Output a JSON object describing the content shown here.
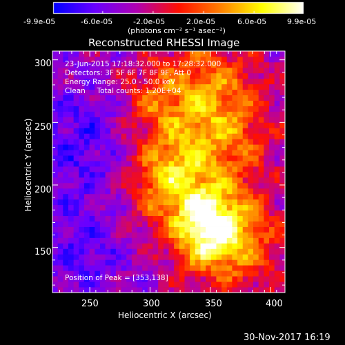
{
  "chart_data": {
    "type": "heatmap",
    "title": "Reconstructed RHESSI Image",
    "xlabel": "Heliocentric X (arcsec)",
    "ylabel": "Heliocentric Y (arcsec)",
    "xlim": [
      219,
      412
    ],
    "ylim": [
      114,
      307
    ],
    "xticks": [
      250,
      300,
      350,
      400
    ],
    "yticks": [
      150,
      200,
      250,
      300
    ],
    "colorbar": {
      "min": -9.9e-05,
      "max": 9.9e-05,
      "ticks": [
        "-9.9e-05",
        "-6.0e-05",
        "-2.0e-05",
        "2.0e-05",
        "6.0e-05",
        "9.9e-05"
      ],
      "tick_values": [
        -9.9e-05,
        -6e-05,
        -2e-05,
        2e-05,
        6e-05,
        9.9e-05
      ],
      "unit_label": "(photons cm⁻² s⁻¹ asec⁻²)",
      "colormap": [
        "#0000ff",
        "#6a00ff",
        "#b000b0",
        "#ff1000",
        "#ff8000",
        "#ffff00",
        "#ffffff"
      ]
    },
    "annotations": [
      "23-Jun-2015 17:18:32.000 to 17:28:32.000",
      "Detectors: 3F 5F 6F 7F 8F 9F, Att 0",
      "Energy Range: 25.0 - 50.0 keV",
      "Clean     Total counts: 1.20E+04"
    ],
    "peak_text": "Position of Peak = [353,138]",
    "peak": [
      353,
      138
    ],
    "grid": false
  },
  "footer_date": "30-Nov-2017 16:19"
}
